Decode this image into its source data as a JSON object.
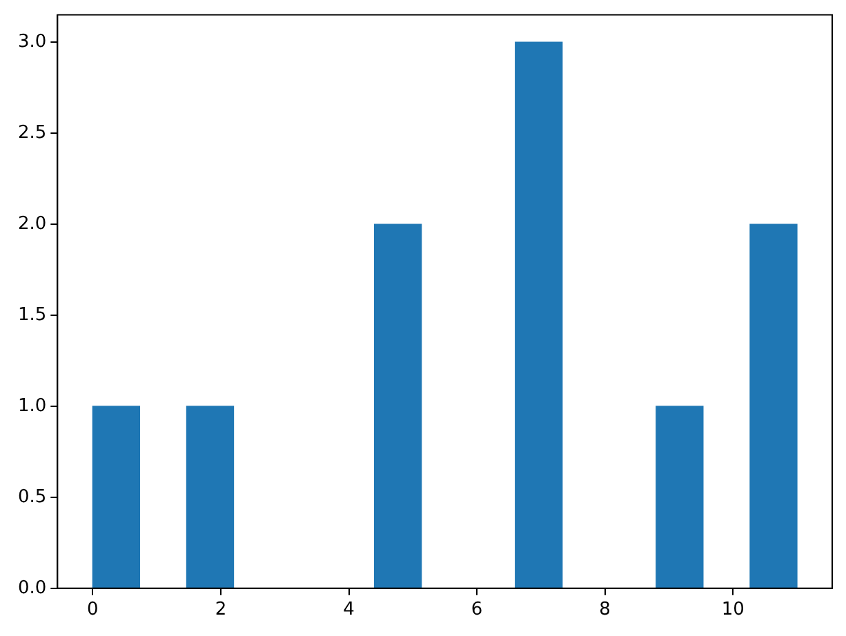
{
  "chart_data": {
    "type": "histogram",
    "bins": [
      0,
      0.733,
      1.467,
      2.2,
      2.933,
      3.667,
      4.4,
      5.133,
      5.867,
      6.6,
      7.333,
      8.067,
      8.8,
      9.533,
      10.267,
      11
    ],
    "values": [
      1,
      0,
      1,
      0,
      0,
      0,
      2,
      0,
      0,
      3,
      0,
      0,
      1,
      0,
      2
    ],
    "color": "#1f77b4",
    "xlim": [
      -0.55,
      11.55
    ],
    "xticks": [
      0,
      2,
      4,
      6,
      8,
      10
    ],
    "ylim": [
      0,
      3.15
    ],
    "yticks": [
      {
        "value": 0,
        "label": "0.0"
      },
      {
        "value": 0.5,
        "label": "0.5"
      },
      {
        "value": 1,
        "label": "1.0"
      },
      {
        "value": 1.5,
        "label": "1.5"
      },
      {
        "value": 2,
        "label": "2.0"
      },
      {
        "value": 2.5,
        "label": "2.5"
      },
      {
        "value": 3,
        "label": "3.0"
      }
    ],
    "grid": false,
    "legend": false
  }
}
